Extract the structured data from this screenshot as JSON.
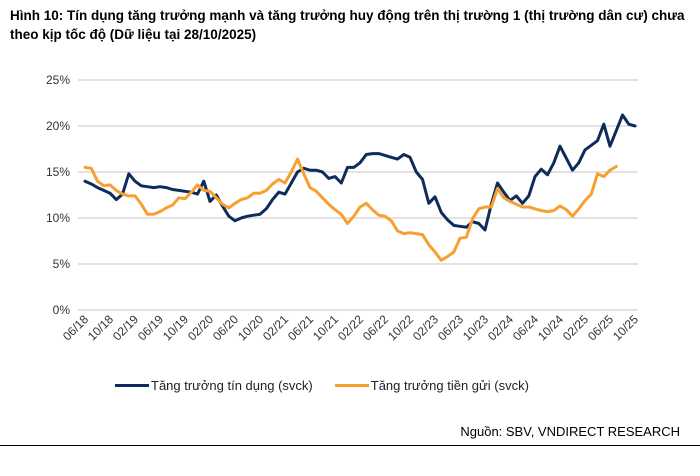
{
  "chart_data": {
    "type": "line",
    "title": "Hình 10: Tín dụng tăng trưởng mạnh và tăng trưởng huy động trên thị trường 1 (thị trường dân cư) chưa theo kịp tốc độ (Dữ liệu tại 28/10/2025)",
    "xlabel": "",
    "ylabel": "",
    "ylim": [
      0,
      25
    ],
    "y_ticks": [
      "0%",
      "5%",
      "10%",
      "15%",
      "20%",
      "25%"
    ],
    "x_ticks": [
      "06/18",
      "10/18",
      "02/19",
      "06/19",
      "10/19",
      "02/20",
      "06/20",
      "10/20",
      "02/21",
      "06/21",
      "10/21",
      "02/22",
      "06/22",
      "10/22",
      "02/23",
      "06/23",
      "10/23",
      "02/24",
      "06/24",
      "10/24",
      "02/25",
      "06/25",
      "10/25"
    ],
    "x_start": "06/18",
    "x_interval": "month",
    "grid": true,
    "legend_position": "bottom",
    "series": [
      {
        "name": "Tăng trưởng tín dụng (svck)",
        "color": "#0f2b5b",
        "values": [
          14.0,
          13.7,
          13.3,
          13.0,
          12.7,
          12.0,
          12.6,
          14.8,
          14.0,
          13.5,
          13.4,
          13.3,
          13.4,
          13.3,
          13.1,
          13.0,
          12.9,
          12.8,
          12.6,
          14.0,
          11.8,
          12.5,
          11.3,
          10.2,
          9.7,
          10.0,
          10.2,
          10.3,
          10.4,
          11.0,
          12.0,
          12.8,
          12.6,
          13.8,
          15.0,
          15.4,
          15.2,
          15.2,
          15.0,
          14.3,
          14.5,
          13.8,
          15.5,
          15.5,
          16.0,
          16.9,
          17.0,
          17.0,
          16.8,
          16.6,
          16.4,
          16.9,
          16.6,
          15.0,
          14.2,
          11.6,
          12.3,
          10.6,
          9.8,
          9.2,
          9.1,
          9.0,
          9.6,
          9.4,
          8.7,
          11.5,
          13.8,
          12.8,
          11.9,
          12.4,
          11.6,
          12.4,
          14.5,
          15.3,
          14.7,
          16.0,
          17.8,
          16.5,
          15.2,
          16.0,
          17.4,
          17.9,
          18.4,
          20.2,
          17.8,
          19.5,
          21.2,
          20.2,
          20.0
        ]
      },
      {
        "name": "Tăng trưởng tiền gửi (svck)",
        "color": "#f7a031",
        "values": [
          15.5,
          15.4,
          14.0,
          13.5,
          13.6,
          13.0,
          12.6,
          12.4,
          12.4,
          11.5,
          10.4,
          10.4,
          10.7,
          11.1,
          11.4,
          12.2,
          12.1,
          12.8,
          13.6,
          13.0,
          12.9,
          12.2,
          11.5,
          11.1,
          11.6,
          12.0,
          12.2,
          12.7,
          12.7,
          13.0,
          13.7,
          14.2,
          13.8,
          15.0,
          16.4,
          14.8,
          13.3,
          12.9,
          12.2,
          11.5,
          10.9,
          10.4,
          9.4,
          10.2,
          11.2,
          11.6,
          10.9,
          10.3,
          10.2,
          9.7,
          8.6,
          8.3,
          8.4,
          8.3,
          8.2,
          7.1,
          6.3,
          5.4,
          5.8,
          6.3,
          7.8,
          7.9,
          9.9,
          11.0,
          11.2,
          11.2,
          13.2,
          12.2,
          11.8,
          11.5,
          11.2,
          11.2,
          11.0,
          10.8,
          10.7,
          10.8,
          11.3,
          10.9,
          10.2,
          11.0,
          11.9,
          12.6,
          14.8,
          14.5,
          15.2,
          15.6
        ]
      }
    ]
  },
  "source": "Nguồn: SBV, VNDIRECT RESEARCH"
}
